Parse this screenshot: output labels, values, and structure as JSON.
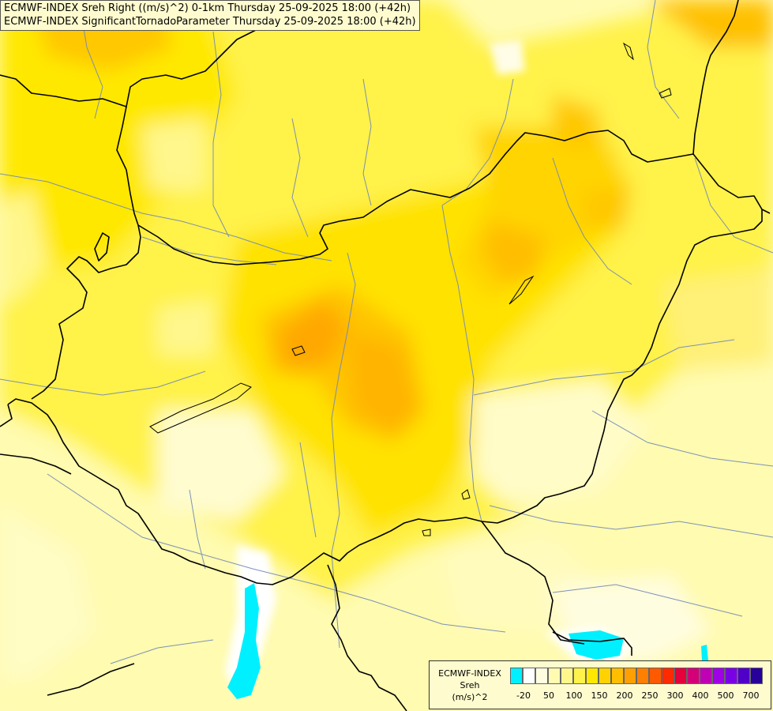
{
  "header": {
    "line1": "ECMWF-INDEX Sreh Right ((m/s)^2) 0-1km Thursday 25-09-2025 18:00 (+42h)",
    "line2": "ECMWF-INDEX SignificantTornadoParameter Thursday 25-09-2025 18:00 (+42h)"
  },
  "legend": {
    "title_line1": "ECMWF-INDEX",
    "title_line2": "Sreh",
    "title_line3": "(m/s)^2",
    "colors": [
      "#00f0ff",
      "#ffffff",
      "#fffde0",
      "#fffbb0",
      "#fff78c",
      "#fff24a",
      "#ffe800",
      "#ffd200",
      "#ffbe00",
      "#ffa000",
      "#ff7f00",
      "#ff5a00",
      "#ff2a00",
      "#e6003c",
      "#d40078",
      "#c000b4",
      "#a000e6",
      "#7a00e6",
      "#5000c8",
      "#28009a"
    ],
    "ticks": [
      "-20",
      "50",
      "100",
      "150",
      "200",
      "250",
      "300",
      "400",
      "500",
      "700"
    ]
  }
}
